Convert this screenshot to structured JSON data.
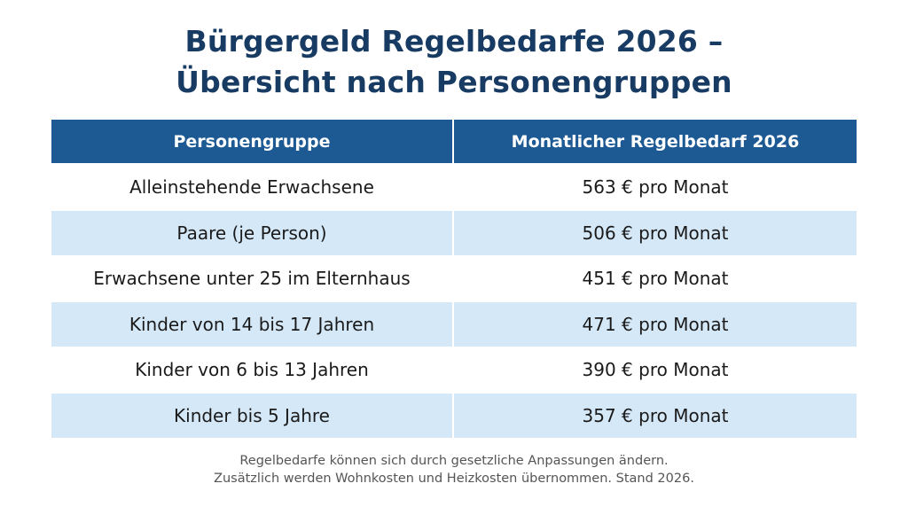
{
  "title": {
    "line1": "Bürgergeld Regelbedarfe 2026 –",
    "line2": "Übersicht nach Personengruppen"
  },
  "table": {
    "headers": [
      "Personengruppe",
      "Monatlicher Regelbedarf 2026"
    ],
    "rows": [
      [
        "Alleinstehende Erwachsene",
        "563 € pro Monat"
      ],
      [
        "Paare (je Person)",
        "506 € pro Monat"
      ],
      [
        "Erwachsene unter 25 im Elternhaus",
        "451 € pro Monat"
      ],
      [
        "Kinder von 14 bis 17 Jahren",
        "471 € pro Monat"
      ],
      [
        "Kinder von 6 bis 13 Jahren",
        "390 € pro Monat"
      ],
      [
        "Kinder bis 5 Jahre",
        "357 € pro Monat"
      ]
    ]
  },
  "footer": {
    "line1": "Regelbedarfe können sich durch gesetzliche Anpassungen ändern.",
    "line2": "Zusätzlich werden Wohnkosten und Heizkosten übernommen. Stand 2026."
  },
  "colors": {
    "title": "#173b63",
    "header_bg": "#1d5a94",
    "alt_row": "#d5e8f8"
  }
}
